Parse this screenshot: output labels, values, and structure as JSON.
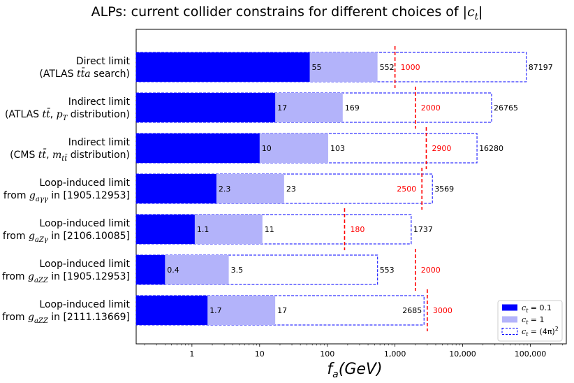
{
  "chart_data": {
    "type": "bar",
    "orientation": "horizontal",
    "x_scale": "log",
    "title_parts": [
      "ALPs: current collider constrains for different choices of |",
      "c",
      "t",
      "|"
    ],
    "xlabel_parts": [
      "f",
      "a",
      "(GeV)"
    ],
    "xlim": [
      0.15,
      340000
    ],
    "xticks": [
      {
        "value": 1,
        "label": "1"
      },
      {
        "value": 10,
        "label": "10"
      },
      {
        "value": 100,
        "label": "100"
      },
      {
        "value": 1000,
        "label": "1,000"
      },
      {
        "value": 10000,
        "label": "10,000"
      },
      {
        "value": 100000,
        "label": "100,000"
      }
    ],
    "legend": {
      "position": "lower-right",
      "entries": [
        {
          "series": "ct_0.1",
          "pre": "c",
          "sub": "t",
          "post": " = 0.1",
          "sup": ""
        },
        {
          "series": "ct_1",
          "pre": "c",
          "sub": "t",
          "post": " = 1",
          "sup": ""
        },
        {
          "series": "ct_4pi2",
          "pre": "c",
          "sub": "t",
          "post": " = (4π)",
          "sup": "2"
        }
      ]
    },
    "colors": {
      "ct_0.1": "#0000ff",
      "ct_1": "#b3b3fa",
      "ct_4pi2": "#0000ff",
      "marker": "#ff0000"
    },
    "categories": [
      {
        "label_lines": [
          [
            "Direct limit"
          ],
          [
            "(ATLAS ",
            {
              "i": "tt̄a"
            },
            " search)"
          ]
        ],
        "ct_0.1": 55,
        "ct_1": 552,
        "ct_4pi2": 87197,
        "marker": 1000,
        "labels": {
          "ct_0.1": "55",
          "ct_1": "552",
          "ct_4pi2": "87197",
          "marker": "1000"
        },
        "marker_label_side": "right"
      },
      {
        "label_lines": [
          [
            "Indirect limit"
          ],
          [
            "(ATLAS ",
            {
              "i": "tt̄"
            },
            ", ",
            {
              "i": "p"
            },
            {
              "sub": "T"
            },
            " distribution)"
          ]
        ],
        "ct_0.1": 17,
        "ct_1": 169,
        "ct_4pi2": 26765,
        "marker": 2000,
        "labels": {
          "ct_0.1": "17",
          "ct_1": "169",
          "ct_4pi2": "26765",
          "marker": "2000"
        },
        "marker_label_side": "right"
      },
      {
        "label_lines": [
          [
            "Indirect limit"
          ],
          [
            "(CMS ",
            {
              "i": "tt̄"
            },
            ", ",
            {
              "i": "m"
            },
            {
              "sub": "tt̄"
            },
            " distribution)"
          ]
        ],
        "ct_0.1": 10,
        "ct_1": 103,
        "ct_4pi2": 16280,
        "marker": 2900,
        "labels": {
          "ct_0.1": "10",
          "ct_1": "103",
          "ct_4pi2": "16280",
          "marker": "2900"
        },
        "marker_label_side": "right"
      },
      {
        "label_lines": [
          [
            "Loop-induced limit"
          ],
          [
            "from ",
            {
              "i": "g"
            },
            {
              "sub": "aγγ"
            },
            " in [1905.12953]"
          ]
        ],
        "ct_0.1": 2.3,
        "ct_1": 23,
        "ct_4pi2": 3569,
        "marker": 2500,
        "labels": {
          "ct_0.1": "2.3",
          "ct_1": "23",
          "ct_4pi2": "3569",
          "marker": "2500"
        },
        "marker_label_side": "left"
      },
      {
        "label_lines": [
          [
            "Loop-induced limit"
          ],
          [
            "from ",
            {
              "i": "g"
            },
            {
              "sub": "aZγ"
            },
            " in [2106.10085]"
          ]
        ],
        "ct_0.1": 1.1,
        "ct_1": 11,
        "ct_4pi2": 1737,
        "marker": 180,
        "labels": {
          "ct_0.1": "1.1",
          "ct_1": "11",
          "ct_4pi2": "1737",
          "marker": "180"
        },
        "marker_label_side": "right"
      },
      {
        "label_lines": [
          [
            "Loop-induced limit"
          ],
          [
            "from ",
            {
              "i": "g"
            },
            {
              "sub": "aZZ"
            },
            " in [1905.12953]"
          ]
        ],
        "ct_0.1": 0.4,
        "ct_1": 3.5,
        "ct_4pi2": 553,
        "marker": 2000,
        "labels": {
          "ct_0.1": "0.4",
          "ct_1": "3.5",
          "ct_4pi2": "553",
          "marker": "2000"
        },
        "marker_label_side": "right"
      },
      {
        "label_lines": [
          [
            "Loop-induced limit"
          ],
          [
            "from ",
            {
              "i": "g"
            },
            {
              "sub": "aZZ"
            },
            " in [2111.13669]"
          ]
        ],
        "ct_0.1": 1.7,
        "ct_1": 17,
        "ct_4pi2": 2685,
        "marker": 3000,
        "labels": {
          "ct_0.1": "1.7",
          "ct_1": "17",
          "ct_4pi2": "2685",
          "marker": "3000"
        },
        "marker_label_side": "right"
      }
    ]
  }
}
